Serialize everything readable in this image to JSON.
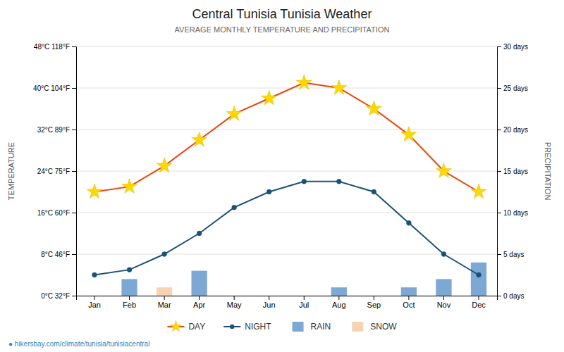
{
  "chart_data": {
    "type": "combo",
    "title": "Central Tunisia Tunisia Weather",
    "subtitle": "AVERAGE MONTHLY TEMPERATURE AND PRECIPITATION",
    "y_label": "TEMPERATURE",
    "y2_label": "PRECIPITATION",
    "annotations": [
      "● hikersbay.com/climate/tunisia/tunisiacentral"
    ],
    "categories": [
      "Jan",
      "Feb",
      "Mar",
      "Apr",
      "May",
      "Jun",
      "Jul",
      "Aug",
      "Sep",
      "Oct",
      "Nov",
      "Dec"
    ],
    "series": [
      {
        "name": "DAY",
        "type": "line",
        "color": "#e8450a",
        "marker": "star",
        "values": [
          20,
          21,
          25,
          30,
          35,
          38,
          41,
          40,
          36,
          31,
          24,
          20
        ]
      },
      {
        "name": "NIGHT",
        "type": "line",
        "color": "#1a5276",
        "marker": "circle",
        "values": [
          4,
          5,
          8,
          12,
          17,
          20,
          22,
          22,
          20,
          14,
          8,
          4
        ]
      },
      {
        "name": "RAIN",
        "type": "bar",
        "axis": "y2",
        "color": "#6699cc",
        "values": [
          0,
          2,
          0,
          3,
          0,
          0,
          0,
          1,
          0,
          1,
          2,
          4
        ]
      },
      {
        "name": "SNOW",
        "type": "bar",
        "axis": "y2",
        "color": "#f5cba7",
        "values": [
          0,
          0,
          1,
          0,
          0,
          0,
          0,
          0,
          0,
          0,
          0,
          0
        ]
      }
    ],
    "stacked": true,
    "ylim": [
      0,
      48
    ],
    "yticks": [
      {
        "value": 0,
        "label": "0°C 32°F"
      },
      {
        "value": 8,
        "label": "8°C 46°F"
      },
      {
        "value": 16,
        "label": "16°C 60°F"
      },
      {
        "value": 24,
        "label": "24°C 75°F"
      },
      {
        "value": 32,
        "label": "32°C 89°F"
      },
      {
        "value": 40,
        "label": "40°C 104°F"
      },
      {
        "value": 48,
        "label": "48°C 118°F"
      }
    ],
    "y2lim": [
      0,
      30
    ],
    "y2ticks": [
      {
        "value": 0,
        "label": "0 days"
      },
      {
        "value": 5,
        "label": "5 days"
      },
      {
        "value": 10,
        "label": "10 days"
      },
      {
        "value": 15,
        "label": "15 days"
      },
      {
        "value": 20,
        "label": "20 days"
      },
      {
        "value": 25,
        "label": "25 days"
      },
      {
        "value": 30,
        "label": "30 days"
      }
    ],
    "grid": true,
    "legend": "bottom"
  }
}
